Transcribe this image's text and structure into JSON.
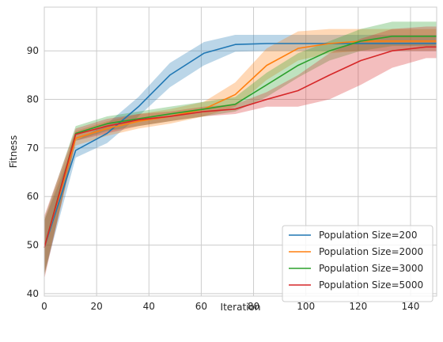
{
  "chart_data": {
    "type": "line",
    "title": "",
    "xlabel": "Iteration",
    "ylabel": "Fitness",
    "xlim": [
      0,
      150
    ],
    "ylim": [
      39.5,
      99
    ],
    "xticks": [
      0,
      20,
      40,
      60,
      80,
      100,
      120,
      140
    ],
    "yticks": [
      40,
      50,
      60,
      70,
      80,
      90
    ],
    "grid": true,
    "legend_position": "lower-right",
    "series": [
      {
        "name": "Population Size=200",
        "color": "#1f77b4",
        "x": [
          0,
          12,
          24,
          36,
          48,
          61,
          73,
          85,
          97,
          109,
          121,
          133,
          146,
          150
        ],
        "y": [
          49.5,
          69.5,
          73.0,
          78.5,
          85.0,
          89.5,
          91.3,
          91.5,
          91.5,
          91.5,
          91.5,
          91.5,
          91.5,
          91.5
        ],
        "lower": [
          44.0,
          68.0,
          71.0,
          76.5,
          82.5,
          87.0,
          89.8,
          90.0,
          90.0,
          90.0,
          90.0,
          90.0,
          90.0,
          90.0
        ],
        "upper": [
          55.0,
          71.5,
          75.0,
          80.5,
          87.5,
          91.8,
          93.3,
          93.3,
          93.3,
          93.3,
          93.3,
          93.3,
          93.3,
          93.3
        ]
      },
      {
        "name": "Population Size=2000",
        "color": "#ff7f0e",
        "x": [
          0,
          12,
          24,
          36,
          48,
          61,
          73,
          85,
          97,
          109,
          121,
          133,
          146,
          150
        ],
        "y": [
          49.5,
          72.0,
          74.0,
          75.5,
          76.5,
          78.0,
          81.0,
          87.0,
          90.5,
          91.5,
          92.0,
          92.0,
          92.0,
          92.0
        ],
        "lower": [
          44.0,
          70.5,
          72.5,
          74.0,
          75.0,
          76.5,
          78.5,
          84.0,
          88.0,
          89.5,
          90.0,
          90.0,
          90.0,
          90.0
        ],
        "upper": [
          55.0,
          73.5,
          75.5,
          77.0,
          78.0,
          79.5,
          83.5,
          90.5,
          94.0,
          94.5,
          94.5,
          94.5,
          94.5,
          94.5
        ]
      },
      {
        "name": "Population Size=3000",
        "color": "#2ca02c",
        "x": [
          0,
          12,
          24,
          36,
          48,
          61,
          73,
          85,
          97,
          109,
          121,
          133,
          146,
          150
        ],
        "y": [
          49.5,
          73.0,
          75.0,
          76.0,
          77.0,
          78.0,
          79.0,
          83.0,
          87.0,
          90.0,
          92.0,
          93.0,
          93.0,
          93.0
        ],
        "lower": [
          43.5,
          71.5,
          73.5,
          74.5,
          75.5,
          76.5,
          77.5,
          80.5,
          84.5,
          88.0,
          90.0,
          91.0,
          91.0,
          91.0
        ],
        "upper": [
          55.5,
          74.5,
          76.5,
          77.5,
          78.5,
          79.5,
          80.5,
          85.5,
          89.5,
          92.0,
          94.5,
          96.0,
          96.0,
          96.0
        ]
      },
      {
        "name": "Population Size=5000",
        "color": "#d62728",
        "x": [
          0,
          12,
          24,
          36,
          48,
          61,
          73,
          85,
          97,
          109,
          121,
          133,
          146,
          150
        ],
        "y": [
          49.5,
          72.8,
          74.5,
          75.8,
          76.5,
          77.5,
          78.0,
          80.0,
          81.8,
          85.0,
          88.0,
          90.0,
          90.8,
          90.8
        ],
        "lower": [
          43.0,
          71.5,
          73.0,
          74.5,
          75.5,
          76.5,
          77.0,
          78.5,
          78.5,
          80.0,
          83.0,
          86.5,
          88.5,
          88.5
        ],
        "upper": [
          56.0,
          74.0,
          76.0,
          77.0,
          77.5,
          78.5,
          79.0,
          81.5,
          85.0,
          89.5,
          92.5,
          94.5,
          95.0,
          95.0
        ]
      }
    ]
  }
}
